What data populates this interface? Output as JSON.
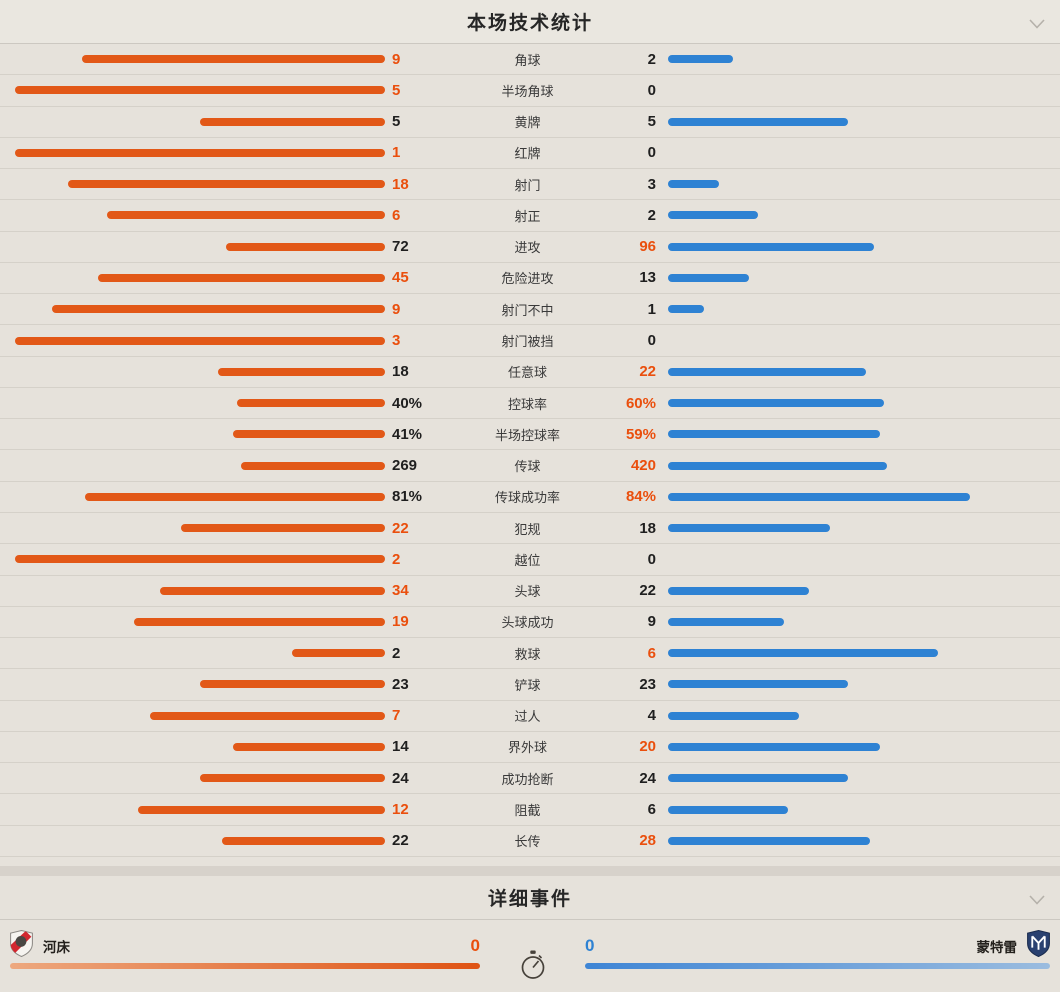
{
  "theme": {
    "page_bg": "#e6e2db",
    "header_bg": "#eae7e0",
    "divider": "#d5d1c9",
    "section_gap": "#d7d2cb",
    "home_color": "#e25817",
    "away_color": "#2e82d3",
    "highlight_color": "#ea4f0d",
    "value_color": "#1f1f1f",
    "home_gradient": [
      "#eda87f",
      "#df5314"
    ],
    "away_gradient": [
      "#3e85d5",
      "#9bbcdf"
    ]
  },
  "stats_panel": {
    "title": "本场技术统计",
    "collapse_icon": "chevron-down-icon",
    "rows": [
      {
        "label": "角球",
        "home": "9",
        "away": "2",
        "home_val": 9,
        "away_val": 2,
        "type": "count",
        "highlight": "home"
      },
      {
        "label": "半场角球",
        "home": "5",
        "away": "0",
        "home_val": 5,
        "away_val": 0,
        "type": "count",
        "highlight": "home"
      },
      {
        "label": "黄牌",
        "home": "5",
        "away": "5",
        "home_val": 5,
        "away_val": 5,
        "type": "count",
        "highlight": "none"
      },
      {
        "label": "红牌",
        "home": "1",
        "away": "0",
        "home_val": 1,
        "away_val": 0,
        "type": "count",
        "highlight": "home"
      },
      {
        "label": "射门",
        "home": "18",
        "away": "3",
        "home_val": 18,
        "away_val": 3,
        "type": "count",
        "highlight": "home"
      },
      {
        "label": "射正",
        "home": "6",
        "away": "2",
        "home_val": 6,
        "away_val": 2,
        "type": "count",
        "highlight": "home"
      },
      {
        "label": "进攻",
        "home": "72",
        "away": "96",
        "home_val": 72,
        "away_val": 96,
        "type": "count",
        "highlight": "away"
      },
      {
        "label": "危险进攻",
        "home": "45",
        "away": "13",
        "home_val": 45,
        "away_val": 13,
        "type": "count",
        "highlight": "home"
      },
      {
        "label": "射门不中",
        "home": "9",
        "away": "1",
        "home_val": 9,
        "away_val": 1,
        "type": "count",
        "highlight": "home"
      },
      {
        "label": "射门被挡",
        "home": "3",
        "away": "0",
        "home_val": 3,
        "away_val": 0,
        "type": "count",
        "highlight": "home"
      },
      {
        "label": "任意球",
        "home": "18",
        "away": "22",
        "home_val": 18,
        "away_val": 22,
        "type": "count",
        "highlight": "away"
      },
      {
        "label": "控球率",
        "home": "40%",
        "away": "60%",
        "home_val": 40,
        "away_val": 60,
        "type": "pct",
        "highlight": "away"
      },
      {
        "label": "半场控球率",
        "home": "41%",
        "away": "59%",
        "home_val": 41,
        "away_val": 59,
        "type": "pct",
        "highlight": "away"
      },
      {
        "label": "传球",
        "home": "269",
        "away": "420",
        "home_val": 269,
        "away_val": 420,
        "type": "count",
        "highlight": "away"
      },
      {
        "label": "传球成功率",
        "home": "81%",
        "away": "84%",
        "home_val": 81,
        "away_val": 84,
        "type": "pct",
        "highlight": "away"
      },
      {
        "label": "犯规",
        "home": "22",
        "away": "18",
        "home_val": 22,
        "away_val": 18,
        "type": "count",
        "highlight": "home"
      },
      {
        "label": "越位",
        "home": "2",
        "away": "0",
        "home_val": 2,
        "away_val": 0,
        "type": "count",
        "highlight": "home"
      },
      {
        "label": "头球",
        "home": "34",
        "away": "22",
        "home_val": 34,
        "away_val": 22,
        "type": "count",
        "highlight": "home"
      },
      {
        "label": "头球成功",
        "home": "19",
        "away": "9",
        "home_val": 19,
        "away_val": 9,
        "type": "count",
        "highlight": "home"
      },
      {
        "label": "救球",
        "home": "2",
        "away": "6",
        "home_val": 2,
        "away_val": 6,
        "type": "count",
        "highlight": "away"
      },
      {
        "label": "铲球",
        "home": "23",
        "away": "23",
        "home_val": 23,
        "away_val": 23,
        "type": "count",
        "highlight": "none"
      },
      {
        "label": "过人",
        "home": "7",
        "away": "4",
        "home_val": 7,
        "away_val": 4,
        "type": "count",
        "highlight": "home"
      },
      {
        "label": "界外球",
        "home": "14",
        "away": "20",
        "home_val": 14,
        "away_val": 20,
        "type": "count",
        "highlight": "away"
      },
      {
        "label": "成功抢断",
        "home": "24",
        "away": "24",
        "home_val": 24,
        "away_val": 24,
        "type": "count",
        "highlight": "none"
      },
      {
        "label": "阻截",
        "home": "12",
        "away": "6",
        "home_val": 12,
        "away_val": 6,
        "type": "count",
        "highlight": "home"
      },
      {
        "label": "长传",
        "home": "22",
        "away": "28",
        "home_val": 22,
        "away_val": 28,
        "type": "count",
        "highlight": "away"
      }
    ]
  },
  "events_panel": {
    "title": "详细事件",
    "collapse_icon": "chevron-down-icon",
    "center_icon": "stopwatch-icon",
    "home_team": {
      "name": "河床",
      "score": "0",
      "logo": "river-plate-crest"
    },
    "away_team": {
      "name": "蒙特雷",
      "score": "0",
      "logo": "monterrey-crest"
    }
  }
}
